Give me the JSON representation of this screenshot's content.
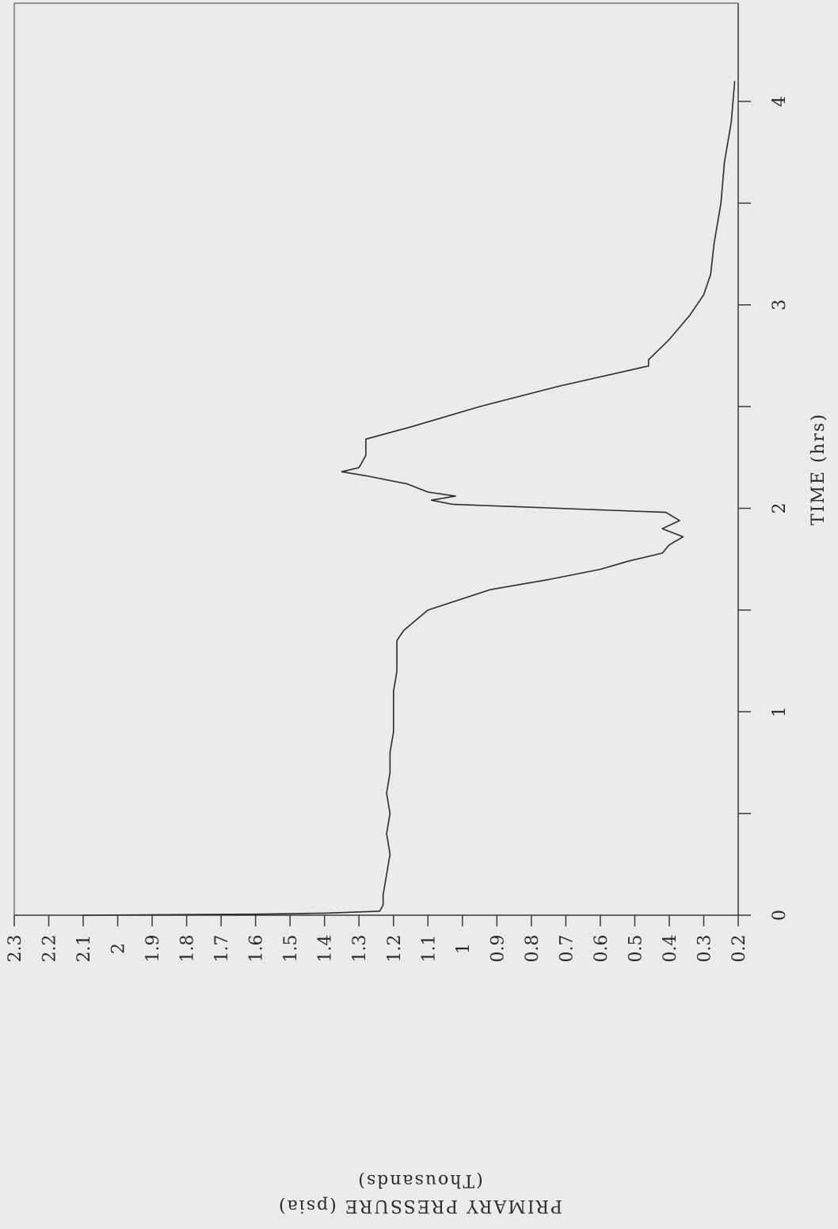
{
  "chart_data": {
    "type": "line",
    "orientation": "rotated-90-clockwise",
    "xlabel": "TIME (hrs)",
    "ylabel": "PRIMARY PRESSURE (psia)",
    "ylabel_unit_note": "(Thousands)",
    "xlim": [
      0,
      4.2
    ],
    "ylim": [
      0.2,
      2.3
    ],
    "x_ticks": [
      0,
      1,
      2,
      3,
      4
    ],
    "x_minor_ticks": [
      0.5,
      1.5,
      2.5,
      3.5
    ],
    "y_ticks": [
      "2.3",
      "2.2",
      "2.1",
      "2",
      "1.9",
      "1.8",
      "1.7",
      "1.6",
      "1.5",
      "1.4",
      "1.3",
      "1.2",
      "1.1",
      "1",
      "0.9",
      "0.8",
      "0.7",
      "0.6",
      "0.5",
      "0.4",
      "0.3",
      "0.2"
    ],
    "grid": false,
    "series": [
      {
        "x": [
          0,
          0.005,
          0.01,
          0.02,
          0.05,
          0.1,
          0.2,
          0.3,
          0.4,
          0.5,
          0.6,
          0.7,
          0.8,
          0.9,
          1.0,
          1.1,
          1.2,
          1.3,
          1.35,
          1.4,
          1.5,
          1.6,
          1.65,
          1.7,
          1.74,
          1.78,
          1.82,
          1.86,
          1.9,
          1.94,
          1.98,
          2.0,
          2.02,
          2.04,
          2.06,
          2.08,
          2.12,
          2.16,
          2.18,
          2.2,
          2.26,
          2.34,
          2.4,
          2.5,
          2.6,
          2.7,
          2.73,
          2.83,
          2.95,
          3.05,
          3.15,
          3.3,
          3.5,
          3.7,
          3.9,
          4.1
        ],
        "y": [
          2.1,
          1.6,
          1.4,
          1.24,
          1.23,
          1.23,
          1.22,
          1.21,
          1.22,
          1.21,
          1.22,
          1.21,
          1.21,
          1.2,
          1.2,
          1.2,
          1.19,
          1.19,
          1.19,
          1.17,
          1.1,
          0.92,
          0.75,
          0.6,
          0.52,
          0.42,
          0.4,
          0.36,
          0.42,
          0.37,
          0.41,
          0.72,
          1.03,
          1.09,
          1.02,
          1.1,
          1.16,
          1.28,
          1.35,
          1.3,
          1.28,
          1.28,
          1.15,
          0.95,
          0.72,
          0.46,
          0.46,
          0.4,
          0.34,
          0.3,
          0.28,
          0.27,
          0.25,
          0.24,
          0.22,
          0.21
        ]
      }
    ]
  }
}
